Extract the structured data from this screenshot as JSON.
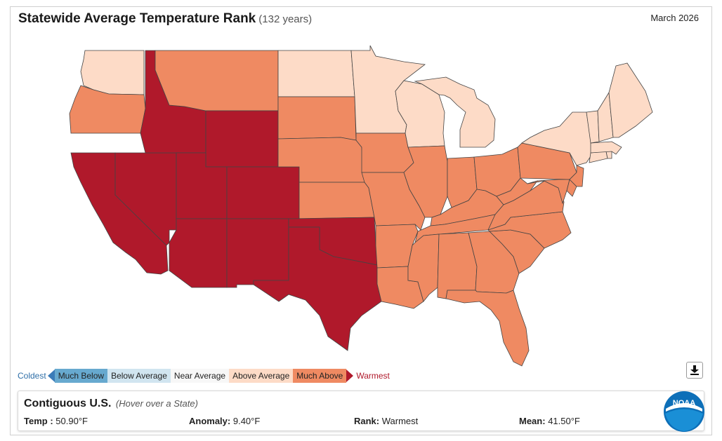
{
  "header": {
    "title": "Statewide Average Temperature Rank",
    "subtitle": "(132 years)",
    "period": "March 2026"
  },
  "colors": {
    "warmest": "#b0192b",
    "much_above": "#ef8a62",
    "above_average": "#fddbc7",
    "near_average": "#f7f7f7",
    "below_average": "#d1e5f0",
    "much_below": "#67a9cf",
    "coldest": "#2f6fa8"
  },
  "legend": {
    "coldest": "Coldest",
    "much_below": "Much Below",
    "below_average": "Below Average",
    "near_average": "Near Average",
    "above_average": "Above Average",
    "much_above": "Much Above",
    "warmest": "Warmest"
  },
  "states": {
    "WA": "above_average",
    "OR": "much_above",
    "CA": "warmest",
    "NV": "warmest",
    "ID": "warmest",
    "MT": "much_above",
    "WY": "warmest",
    "UT": "warmest",
    "AZ": "warmest",
    "CO": "warmest",
    "NM": "warmest",
    "TX": "warmest",
    "OK": "warmest",
    "ND": "above_average",
    "SD": "much_above",
    "NE": "much_above",
    "KS": "much_above",
    "MN": "above_average",
    "IA": "much_above",
    "MO": "much_above",
    "AR": "much_above",
    "LA": "much_above",
    "WI": "above_average",
    "IL": "much_above",
    "MI": "above_average",
    "IN": "much_above",
    "OH": "much_above",
    "KY": "much_above",
    "TN": "much_above",
    "MS": "much_above",
    "AL": "much_above",
    "GA": "much_above",
    "FL": "much_above",
    "SC": "much_above",
    "NC": "much_above",
    "VA": "much_above",
    "WV": "much_above",
    "PA": "much_above",
    "NY": "above_average",
    "NJ": "much_above",
    "DE": "much_above",
    "MD": "much_above",
    "CT": "above_average",
    "RI": "above_average",
    "MA": "above_average",
    "VT": "above_average",
    "NH": "above_average",
    "ME": "above_average"
  },
  "info": {
    "region": "Contiguous U.S.",
    "hint": "(Hover over a State)",
    "temp_label": "Temp :",
    "temp_value": "50.90°F",
    "anomaly_label": "Anomaly:",
    "anomaly_value": "9.40°F",
    "rank_label": "Rank:",
    "rank_value": "Warmest",
    "mean_label": "Mean:",
    "mean_value": "41.50°F"
  },
  "logo": {
    "text": "NOAA",
    "icon": "noaa-logo"
  },
  "download": {
    "icon": "download-icon"
  }
}
